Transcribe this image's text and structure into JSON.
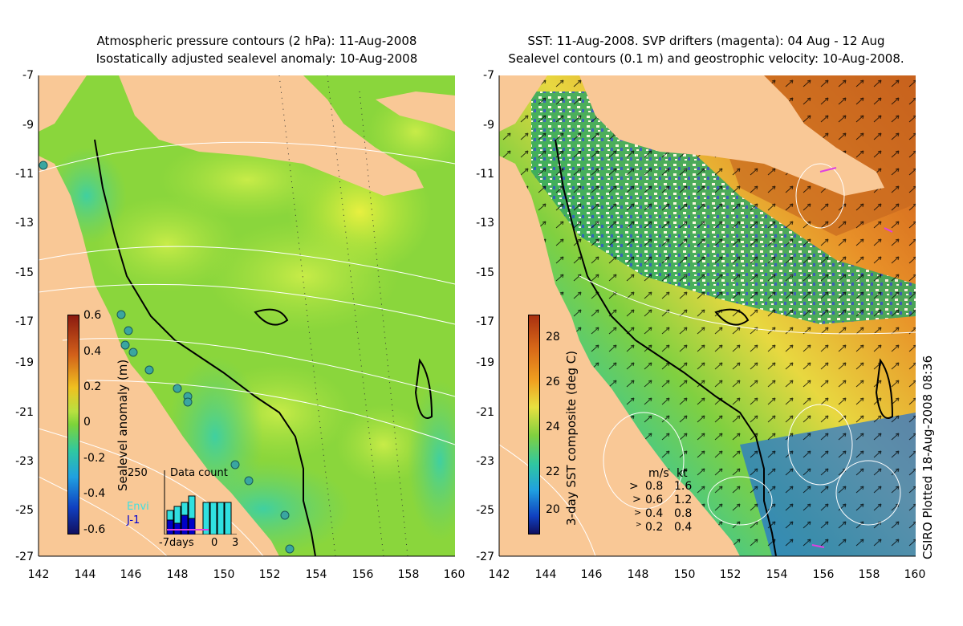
{
  "left_panel": {
    "title_line1": "Atmospheric pressure contours (2 hPa): 11-Aug-2008",
    "title_line2": "Isostatically adjusted sealevel anomaly: 10-Aug-2008",
    "colorbar_label": "Sealevel anomaly (m)",
    "colorbar_ticks": [
      "0.6",
      "0.4",
      "0.2",
      "0",
      "-0.2",
      "-0.4",
      "-0.6"
    ],
    "inset": {
      "count_max": "250",
      "title": "Data count",
      "legend_envi": "Envi",
      "legend_j1": "J-1",
      "x_label_left": "-7days",
      "x_label_mid": "0",
      "x_label_right": "3"
    }
  },
  "right_panel": {
    "title_line1": "SST: 11-Aug-2008. SVP drifters (magenta): 04 Aug - 12 Aug",
    "title_line2": "Sealevel contours (0.1 m) and geostrophic velocity: 10-Aug-2008.",
    "colorbar_label": "3-day SST composite (deg C)",
    "colorbar_ticks": [
      "28",
      "26",
      "24",
      "22",
      "20"
    ],
    "velocity_legend": {
      "header_ms": "m/s",
      "header_kt": "kt",
      "rows": [
        {
          "ms": "0.8",
          "kt": "1.6"
        },
        {
          "ms": "0.6",
          "kt": "1.2"
        },
        {
          "ms": "0.4",
          "kt": "0.8"
        },
        {
          "ms": "0.2",
          "kt": "0.4"
        }
      ]
    },
    "side_label": "CSIRO Plotted 18-Aug-2008 08:36"
  },
  "axes": {
    "y_ticks": [
      "-7",
      "-9",
      "-11",
      "-13",
      "-15",
      "-17",
      "-19",
      "-21",
      "-23",
      "-25",
      "-27"
    ],
    "x_ticks": [
      "142",
      "144",
      "146",
      "148",
      "150",
      "152",
      "154",
      "156",
      "158",
      "160"
    ]
  },
  "colors": {
    "land": "#f9c896",
    "ocean_green": "#7fd438",
    "drifter_magenta": "#e040e0",
    "station_cyan": "#3aa6a0"
  }
}
